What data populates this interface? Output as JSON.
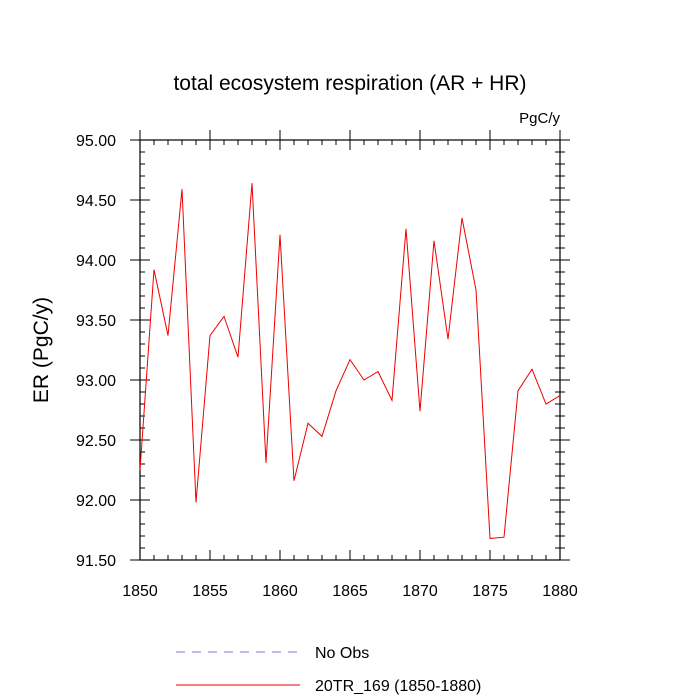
{
  "chart_data": {
    "type": "line",
    "title": "total ecosystem respiration (AR + HR)",
    "units": "PgC/y",
    "xlabel": "",
    "ylabel": "ER  (PgC/y)",
    "xlim": [
      1850,
      1880
    ],
    "ylim": [
      91.5,
      95.0
    ],
    "x_ticks": [
      1850,
      1855,
      1860,
      1865,
      1870,
      1875,
      1880
    ],
    "x_tick_labels": [
      "1850",
      "1855",
      "1860",
      "1865",
      "1870",
      "1875",
      "1880"
    ],
    "y_ticks": [
      91.5,
      92.0,
      92.5,
      93.0,
      93.5,
      94.0,
      94.5,
      95.0
    ],
    "y_tick_labels": [
      "91.50",
      "92.00",
      "92.50",
      "93.00",
      "93.50",
      "94.00",
      "94.50",
      "95.00"
    ],
    "grid": false,
    "legend_position": "bottom",
    "series": [
      {
        "name": "No Obs",
        "color": "#7777ee",
        "dash": "dashed",
        "x": [],
        "values": []
      },
      {
        "name": "20TR_169 (1850-1880)",
        "color": "#ee0000",
        "dash": "solid",
        "x": [
          1850,
          1851,
          1852,
          1853,
          1854,
          1855,
          1856,
          1857,
          1858,
          1859,
          1860,
          1861,
          1862,
          1863,
          1864,
          1865,
          1866,
          1867,
          1868,
          1869,
          1870,
          1871,
          1872,
          1873,
          1874,
          1875,
          1876,
          1877,
          1878,
          1879,
          1880
        ],
        "values": [
          92.25,
          93.92,
          93.37,
          94.59,
          91.98,
          93.37,
          93.53,
          93.19,
          94.64,
          92.31,
          94.21,
          92.16,
          92.64,
          92.53,
          92.91,
          93.17,
          93.0,
          93.07,
          92.83,
          94.26,
          92.74,
          94.16,
          93.34,
          94.35,
          93.75,
          91.68,
          91.69,
          92.91,
          93.09,
          92.8,
          92.87
        ]
      }
    ]
  }
}
